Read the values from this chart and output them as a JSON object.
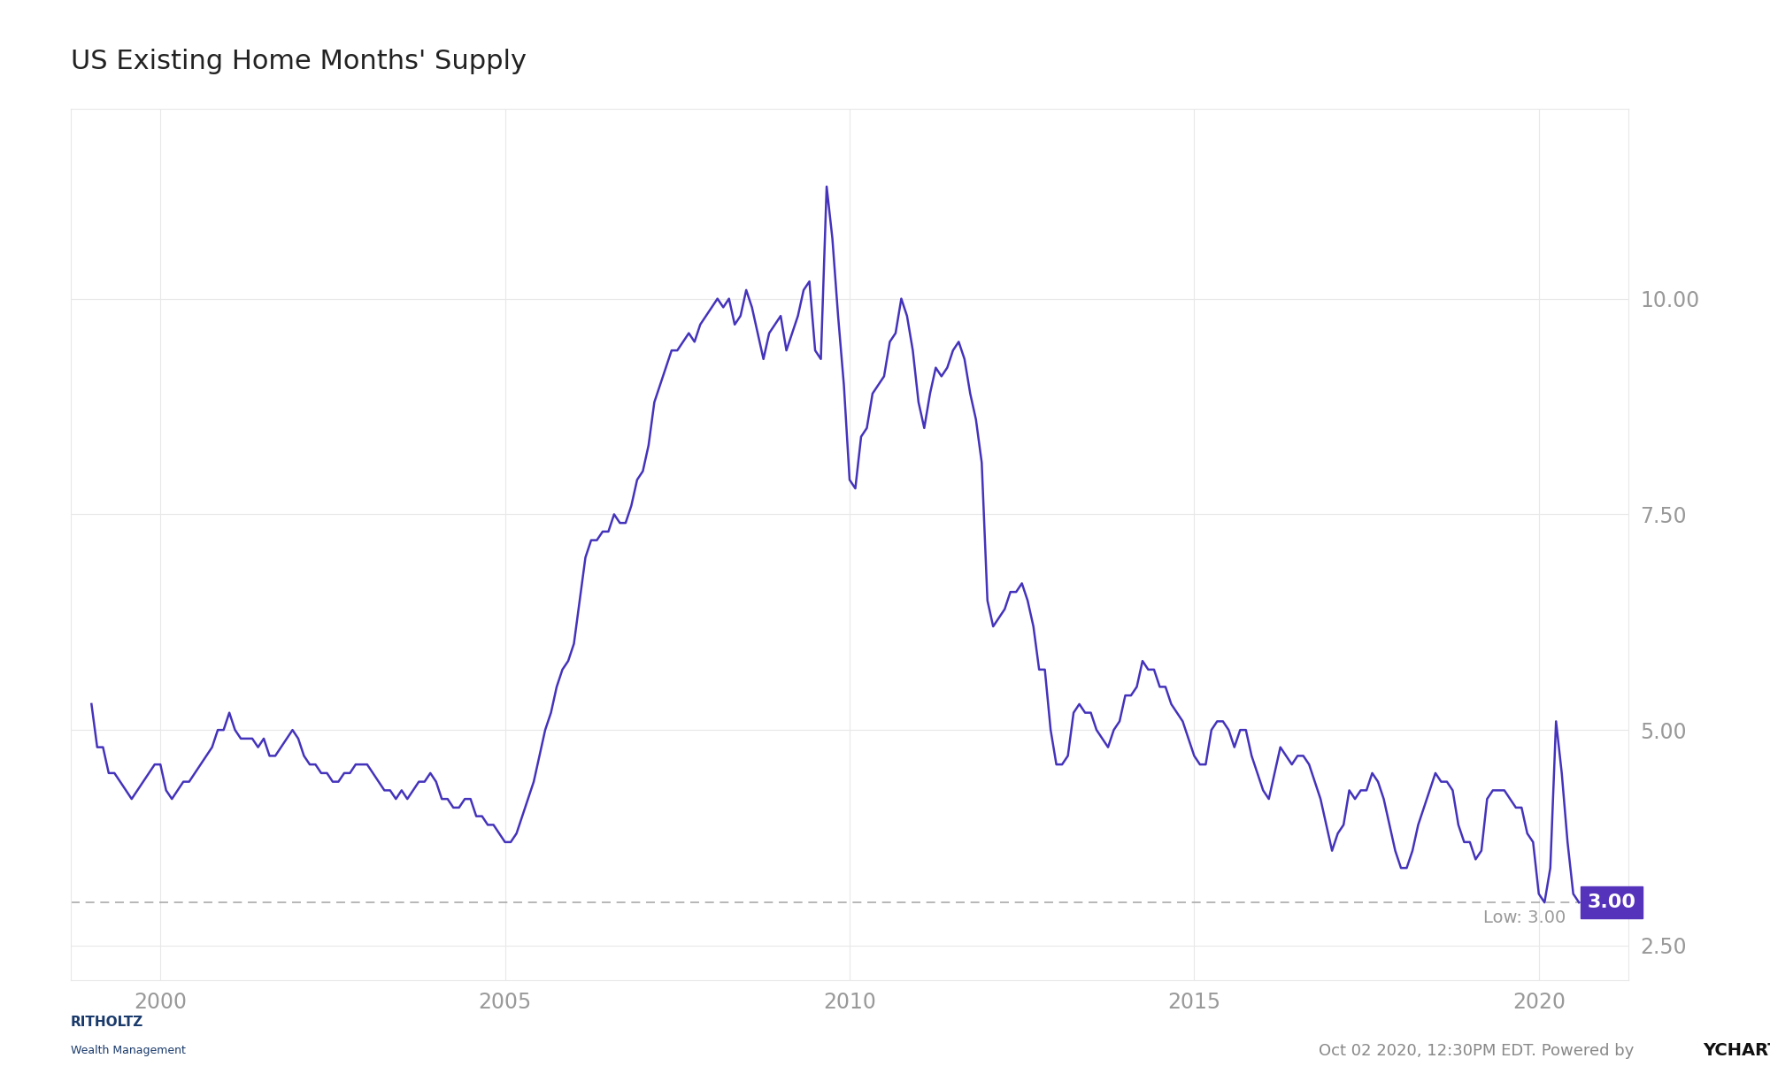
{
  "title": "US Existing Home Months' Supply",
  "line_color": "#4433bb",
  "bg_color": "#ffffff",
  "grid_color": "#e8e8e8",
  "yticks": [
    2.5,
    5.0,
    7.5,
    10.0
  ],
  "ylim": [
    2.1,
    12.2
  ],
  "xlim_start": 1998.7,
  "xlim_end": 2021.3,
  "low_value": 3.0,
  "low_label": "Low: 3.00",
  "annotation_box_color": "#5533bb",
  "annotation_text_color": "#ffffff",
  "xticks": [
    2000,
    2005,
    2010,
    2015,
    2020
  ],
  "data": [
    [
      1999.0,
      5.3
    ],
    [
      1999.083,
      4.8
    ],
    [
      1999.167,
      4.8
    ],
    [
      1999.25,
      4.5
    ],
    [
      1999.333,
      4.5
    ],
    [
      1999.417,
      4.4
    ],
    [
      1999.5,
      4.3
    ],
    [
      1999.583,
      4.2
    ],
    [
      1999.667,
      4.3
    ],
    [
      1999.75,
      4.4
    ],
    [
      1999.833,
      4.5
    ],
    [
      1999.917,
      4.6
    ],
    [
      2000.0,
      4.6
    ],
    [
      2000.083,
      4.3
    ],
    [
      2000.167,
      4.2
    ],
    [
      2000.25,
      4.3
    ],
    [
      2000.333,
      4.4
    ],
    [
      2000.417,
      4.4
    ],
    [
      2000.5,
      4.5
    ],
    [
      2000.583,
      4.6
    ],
    [
      2000.667,
      4.7
    ],
    [
      2000.75,
      4.8
    ],
    [
      2000.833,
      5.0
    ],
    [
      2000.917,
      5.0
    ],
    [
      2001.0,
      5.2
    ],
    [
      2001.083,
      5.0
    ],
    [
      2001.167,
      4.9
    ],
    [
      2001.25,
      4.9
    ],
    [
      2001.333,
      4.9
    ],
    [
      2001.417,
      4.8
    ],
    [
      2001.5,
      4.9
    ],
    [
      2001.583,
      4.7
    ],
    [
      2001.667,
      4.7
    ],
    [
      2001.75,
      4.8
    ],
    [
      2001.833,
      4.9
    ],
    [
      2001.917,
      5.0
    ],
    [
      2002.0,
      4.9
    ],
    [
      2002.083,
      4.7
    ],
    [
      2002.167,
      4.6
    ],
    [
      2002.25,
      4.6
    ],
    [
      2002.333,
      4.5
    ],
    [
      2002.417,
      4.5
    ],
    [
      2002.5,
      4.4
    ],
    [
      2002.583,
      4.4
    ],
    [
      2002.667,
      4.5
    ],
    [
      2002.75,
      4.5
    ],
    [
      2002.833,
      4.6
    ],
    [
      2002.917,
      4.6
    ],
    [
      2003.0,
      4.6
    ],
    [
      2003.083,
      4.5
    ],
    [
      2003.167,
      4.4
    ],
    [
      2003.25,
      4.3
    ],
    [
      2003.333,
      4.3
    ],
    [
      2003.417,
      4.2
    ],
    [
      2003.5,
      4.3
    ],
    [
      2003.583,
      4.2
    ],
    [
      2003.667,
      4.3
    ],
    [
      2003.75,
      4.4
    ],
    [
      2003.833,
      4.4
    ],
    [
      2003.917,
      4.5
    ],
    [
      2004.0,
      4.4
    ],
    [
      2004.083,
      4.2
    ],
    [
      2004.167,
      4.2
    ],
    [
      2004.25,
      4.1
    ],
    [
      2004.333,
      4.1
    ],
    [
      2004.417,
      4.2
    ],
    [
      2004.5,
      4.2
    ],
    [
      2004.583,
      4.0
    ],
    [
      2004.667,
      4.0
    ],
    [
      2004.75,
      3.9
    ],
    [
      2004.833,
      3.9
    ],
    [
      2004.917,
      3.8
    ],
    [
      2005.0,
      3.7
    ],
    [
      2005.083,
      3.7
    ],
    [
      2005.167,
      3.8
    ],
    [
      2005.25,
      4.0
    ],
    [
      2005.333,
      4.2
    ],
    [
      2005.417,
      4.4
    ],
    [
      2005.5,
      4.7
    ],
    [
      2005.583,
      5.0
    ],
    [
      2005.667,
      5.2
    ],
    [
      2005.75,
      5.5
    ],
    [
      2005.833,
      5.7
    ],
    [
      2005.917,
      5.8
    ],
    [
      2006.0,
      6.0
    ],
    [
      2006.083,
      6.5
    ],
    [
      2006.167,
      7.0
    ],
    [
      2006.25,
      7.2
    ],
    [
      2006.333,
      7.2
    ],
    [
      2006.417,
      7.3
    ],
    [
      2006.5,
      7.3
    ],
    [
      2006.583,
      7.5
    ],
    [
      2006.667,
      7.4
    ],
    [
      2006.75,
      7.4
    ],
    [
      2006.833,
      7.6
    ],
    [
      2006.917,
      7.9
    ],
    [
      2007.0,
      8.0
    ],
    [
      2007.083,
      8.3
    ],
    [
      2007.167,
      8.8
    ],
    [
      2007.25,
      9.0
    ],
    [
      2007.333,
      9.2
    ],
    [
      2007.417,
      9.4
    ],
    [
      2007.5,
      9.4
    ],
    [
      2007.583,
      9.5
    ],
    [
      2007.667,
      9.6
    ],
    [
      2007.75,
      9.5
    ],
    [
      2007.833,
      9.7
    ],
    [
      2007.917,
      9.8
    ],
    [
      2008.0,
      9.9
    ],
    [
      2008.083,
      10.0
    ],
    [
      2008.167,
      9.9
    ],
    [
      2008.25,
      10.0
    ],
    [
      2008.333,
      9.7
    ],
    [
      2008.417,
      9.8
    ],
    [
      2008.5,
      10.1
    ],
    [
      2008.583,
      9.9
    ],
    [
      2008.667,
      9.6
    ],
    [
      2008.75,
      9.3
    ],
    [
      2008.833,
      9.6
    ],
    [
      2008.917,
      9.7
    ],
    [
      2009.0,
      9.8
    ],
    [
      2009.083,
      9.4
    ],
    [
      2009.167,
      9.6
    ],
    [
      2009.25,
      9.8
    ],
    [
      2009.333,
      10.1
    ],
    [
      2009.417,
      10.2
    ],
    [
      2009.5,
      9.4
    ],
    [
      2009.583,
      9.3
    ],
    [
      2009.667,
      11.3
    ],
    [
      2009.75,
      10.7
    ],
    [
      2009.833,
      9.8
    ],
    [
      2009.917,
      9.0
    ],
    [
      2010.0,
      7.9
    ],
    [
      2010.083,
      7.8
    ],
    [
      2010.167,
      8.4
    ],
    [
      2010.25,
      8.5
    ],
    [
      2010.333,
      8.9
    ],
    [
      2010.417,
      9.0
    ],
    [
      2010.5,
      9.1
    ],
    [
      2010.583,
      9.5
    ],
    [
      2010.667,
      9.6
    ],
    [
      2010.75,
      10.0
    ],
    [
      2010.833,
      9.8
    ],
    [
      2010.917,
      9.4
    ],
    [
      2011.0,
      8.8
    ],
    [
      2011.083,
      8.5
    ],
    [
      2011.167,
      8.9
    ],
    [
      2011.25,
      9.2
    ],
    [
      2011.333,
      9.1
    ],
    [
      2011.417,
      9.2
    ],
    [
      2011.5,
      9.4
    ],
    [
      2011.583,
      9.5
    ],
    [
      2011.667,
      9.3
    ],
    [
      2011.75,
      8.9
    ],
    [
      2011.833,
      8.6
    ],
    [
      2011.917,
      8.1
    ],
    [
      2012.0,
      6.5
    ],
    [
      2012.083,
      6.2
    ],
    [
      2012.167,
      6.3
    ],
    [
      2012.25,
      6.4
    ],
    [
      2012.333,
      6.6
    ],
    [
      2012.417,
      6.6
    ],
    [
      2012.5,
      6.7
    ],
    [
      2012.583,
      6.5
    ],
    [
      2012.667,
      6.2
    ],
    [
      2012.75,
      5.7
    ],
    [
      2012.833,
      5.7
    ],
    [
      2012.917,
      5.0
    ],
    [
      2013.0,
      4.6
    ],
    [
      2013.083,
      4.6
    ],
    [
      2013.167,
      4.7
    ],
    [
      2013.25,
      5.2
    ],
    [
      2013.333,
      5.3
    ],
    [
      2013.417,
      5.2
    ],
    [
      2013.5,
      5.2
    ],
    [
      2013.583,
      5.0
    ],
    [
      2013.667,
      4.9
    ],
    [
      2013.75,
      4.8
    ],
    [
      2013.833,
      5.0
    ],
    [
      2013.917,
      5.1
    ],
    [
      2014.0,
      5.4
    ],
    [
      2014.083,
      5.4
    ],
    [
      2014.167,
      5.5
    ],
    [
      2014.25,
      5.8
    ],
    [
      2014.333,
      5.7
    ],
    [
      2014.417,
      5.7
    ],
    [
      2014.5,
      5.5
    ],
    [
      2014.583,
      5.5
    ],
    [
      2014.667,
      5.3
    ],
    [
      2014.75,
      5.2
    ],
    [
      2014.833,
      5.1
    ],
    [
      2014.917,
      4.9
    ],
    [
      2015.0,
      4.7
    ],
    [
      2015.083,
      4.6
    ],
    [
      2015.167,
      4.6
    ],
    [
      2015.25,
      5.0
    ],
    [
      2015.333,
      5.1
    ],
    [
      2015.417,
      5.1
    ],
    [
      2015.5,
      5.0
    ],
    [
      2015.583,
      4.8
    ],
    [
      2015.667,
      5.0
    ],
    [
      2015.75,
      5.0
    ],
    [
      2015.833,
      4.7
    ],
    [
      2015.917,
      4.5
    ],
    [
      2016.0,
      4.3
    ],
    [
      2016.083,
      4.2
    ],
    [
      2016.167,
      4.5
    ],
    [
      2016.25,
      4.8
    ],
    [
      2016.333,
      4.7
    ],
    [
      2016.417,
      4.6
    ],
    [
      2016.5,
      4.7
    ],
    [
      2016.583,
      4.7
    ],
    [
      2016.667,
      4.6
    ],
    [
      2016.75,
      4.4
    ],
    [
      2016.833,
      4.2
    ],
    [
      2016.917,
      3.9
    ],
    [
      2017.0,
      3.6
    ],
    [
      2017.083,
      3.8
    ],
    [
      2017.167,
      3.9
    ],
    [
      2017.25,
      4.3
    ],
    [
      2017.333,
      4.2
    ],
    [
      2017.417,
      4.3
    ],
    [
      2017.5,
      4.3
    ],
    [
      2017.583,
      4.5
    ],
    [
      2017.667,
      4.4
    ],
    [
      2017.75,
      4.2
    ],
    [
      2017.833,
      3.9
    ],
    [
      2017.917,
      3.6
    ],
    [
      2018.0,
      3.4
    ],
    [
      2018.083,
      3.4
    ],
    [
      2018.167,
      3.6
    ],
    [
      2018.25,
      3.9
    ],
    [
      2018.333,
      4.1
    ],
    [
      2018.417,
      4.3
    ],
    [
      2018.5,
      4.5
    ],
    [
      2018.583,
      4.4
    ],
    [
      2018.667,
      4.4
    ],
    [
      2018.75,
      4.3
    ],
    [
      2018.833,
      3.9
    ],
    [
      2018.917,
      3.7
    ],
    [
      2019.0,
      3.7
    ],
    [
      2019.083,
      3.5
    ],
    [
      2019.167,
      3.6
    ],
    [
      2019.25,
      4.2
    ],
    [
      2019.333,
      4.3
    ],
    [
      2019.417,
      4.3
    ],
    [
      2019.5,
      4.3
    ],
    [
      2019.583,
      4.2
    ],
    [
      2019.667,
      4.1
    ],
    [
      2019.75,
      4.1
    ],
    [
      2019.833,
      3.8
    ],
    [
      2019.917,
      3.7
    ],
    [
      2020.0,
      3.1
    ],
    [
      2020.083,
      3.0
    ],
    [
      2020.167,
      3.4
    ],
    [
      2020.25,
      5.1
    ],
    [
      2020.333,
      4.5
    ],
    [
      2020.417,
      3.7
    ],
    [
      2020.5,
      3.1
    ],
    [
      2020.583,
      3.0
    ]
  ]
}
